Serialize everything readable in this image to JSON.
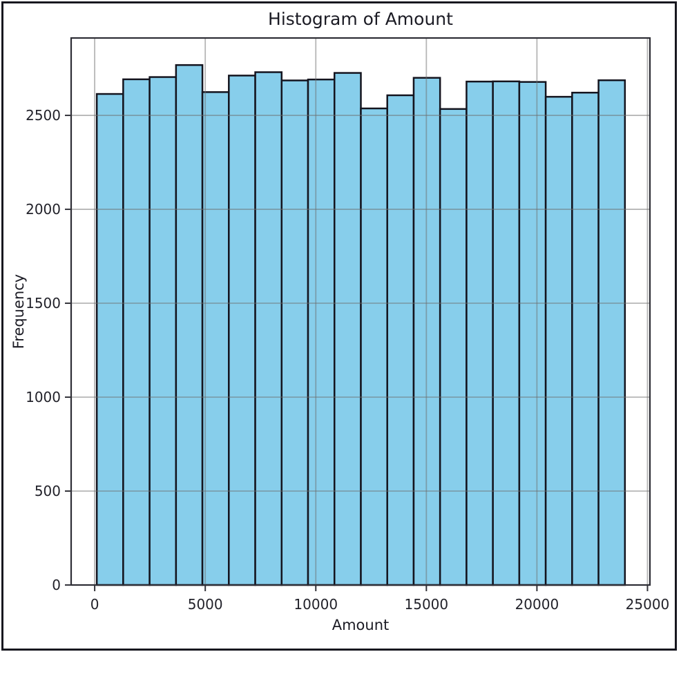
{
  "figure": {
    "title": "Histogram of Amount",
    "xlabel": "Amount",
    "ylabel": "Frequency"
  },
  "chart_data": {
    "type": "bar",
    "subtype": "histogram",
    "title": "Histogram of Amount",
    "xlabel": "Amount",
    "ylabel": "Frequency",
    "bar_color": "#87CEEB",
    "bar_edge_color": "#14141e",
    "grid": true,
    "grid_color": "#6e6e6e",
    "grid_opacity": 0.5,
    "spine_color": "#2d2d35",
    "tick_color": "#33333a",
    "tick_label_color": "#22222a",
    "xlim": [
      -1065,
      25110
    ],
    "ylim": [
      0,
      2912
    ],
    "xticks": [
      0,
      5000,
      10000,
      15000,
      20000,
      25000
    ],
    "xtick_labels": [
      "0",
      "5000",
      "10000",
      "15000",
      "20000",
      "25000"
    ],
    "yticks": [
      0,
      500,
      1000,
      1500,
      2000,
      2500
    ],
    "ytick_labels": [
      "0",
      "500",
      "1000",
      "1500",
      "2000",
      "2500"
    ],
    "bin_edges": [
      95,
      1289,
      2484,
      3678,
      4872,
      6066,
      7261,
      8455,
      9649,
      10843,
      12038,
      13232,
      14426,
      15620,
      16815,
      18009,
      19203,
      20397,
      21592,
      22786,
      23980
    ],
    "counts": [
      2614,
      2692,
      2704,
      2768,
      2624,
      2712,
      2730,
      2686,
      2691,
      2726,
      2537,
      2607,
      2700,
      2534,
      2680,
      2681,
      2678,
      2599,
      2621,
      2687
    ]
  }
}
